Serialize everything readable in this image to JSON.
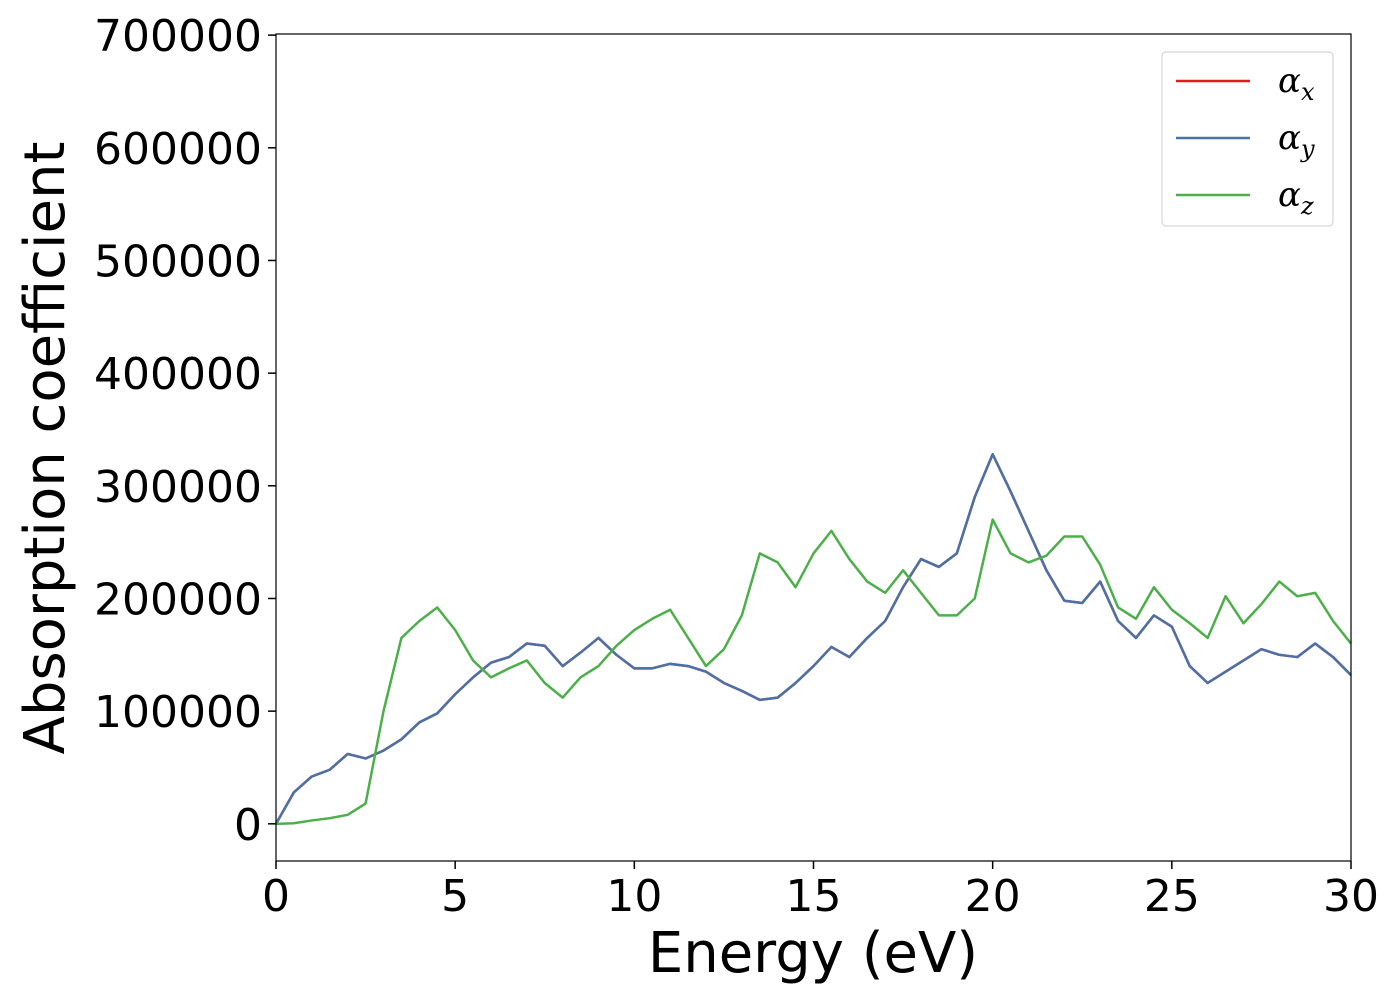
{
  "chart_data": {
    "type": "line",
    "xlabel": "Energy (eV)",
    "ylabel": "Absorption coefficient",
    "x": [
      0,
      0.5,
      1,
      1.5,
      2,
      2.5,
      3,
      3.5,
      4,
      4.5,
      5,
      5.5,
      6,
      6.5,
      7,
      7.5,
      8,
      8.5,
      9,
      9.5,
      10,
      10.5,
      11,
      11.5,
      12,
      12.5,
      13,
      13.5,
      14,
      14.5,
      15,
      15.5,
      16,
      16.5,
      17,
      17.5,
      18,
      18.5,
      19,
      19.5,
      20,
      20.5,
      21,
      21.5,
      22,
      22.5,
      23,
      23.5,
      24,
      24.5,
      25,
      25.5,
      26,
      26.5,
      27,
      27.5,
      28,
      28.5,
      29,
      29.5,
      30
    ],
    "series": [
      {
        "name": "αx",
        "color": "#e41a1c",
        "values": [
          0,
          28000,
          42000,
          48000,
          62000,
          58000,
          65000,
          75000,
          90000,
          98000,
          115000,
          130000,
          143000,
          148000,
          160000,
          158000,
          140000,
          152000,
          165000,
          150000,
          138000,
          138000,
          142000,
          140000,
          135000,
          125000,
          118000,
          110000,
          112000,
          125000,
          140000,
          157000,
          148000,
          165000,
          180000,
          210000,
          235000,
          228000,
          240000,
          290000,
          328000,
          295000,
          260000,
          225000,
          198000,
          196000,
          215000,
          180000,
          165000,
          185000,
          175000,
          140000,
          125000,
          135000,
          145000,
          155000,
          150000,
          148000,
          160000,
          148000,
          132000
        ]
      },
      {
        "name": "αy",
        "color": "#4a72a8",
        "values": [
          0,
          28000,
          42000,
          48000,
          62000,
          58000,
          65000,
          75000,
          90000,
          98000,
          115000,
          130000,
          143000,
          148000,
          160000,
          158000,
          140000,
          152000,
          165000,
          150000,
          138000,
          138000,
          142000,
          140000,
          135000,
          125000,
          118000,
          110000,
          112000,
          125000,
          140000,
          157000,
          148000,
          165000,
          180000,
          210000,
          235000,
          228000,
          240000,
          290000,
          328000,
          295000,
          260000,
          225000,
          198000,
          196000,
          215000,
          180000,
          165000,
          185000,
          175000,
          140000,
          125000,
          135000,
          145000,
          155000,
          150000,
          148000,
          160000,
          148000,
          132000
        ]
      },
      {
        "name": "αz",
        "color": "#4daf4a",
        "values": [
          0,
          500,
          3000,
          5000,
          8000,
          18000,
          100000,
          165000,
          180000,
          192000,
          172000,
          145000,
          130000,
          138000,
          145000,
          125000,
          112000,
          130000,
          140000,
          158000,
          172000,
          182000,
          190000,
          165000,
          140000,
          155000,
          185000,
          240000,
          232000,
          210000,
          240000,
          260000,
          235000,
          215000,
          205000,
          225000,
          205000,
          185000,
          185000,
          200000,
          270000,
          240000,
          232000,
          238000,
          255000,
          255000,
          230000,
          192000,
          182000,
          210000,
          190000,
          178000,
          165000,
          202000,
          178000,
          195000,
          215000,
          202000,
          205000,
          180000,
          160000
        ]
      }
    ],
    "xlim": [
      0,
      30
    ],
    "xticks": [
      0,
      5,
      10,
      15,
      20,
      25,
      30
    ],
    "ylim": [
      -33000,
      701000
    ],
    "yticks": [
      0,
      100000,
      200000,
      300000,
      400000,
      500000,
      600000,
      700000
    ],
    "legend": "upper right"
  }
}
